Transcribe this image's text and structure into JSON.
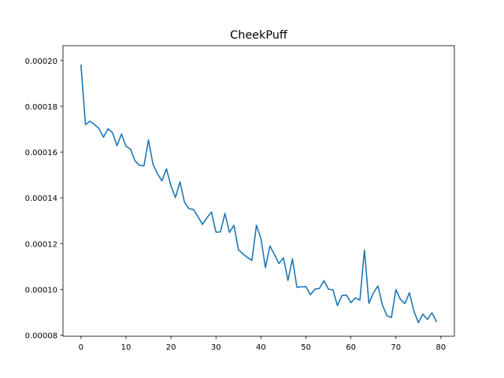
{
  "chart_data": {
    "type": "line",
    "title": "CheekPuff",
    "xlabel": "",
    "ylabel": "",
    "xlim": [
      -4,
      83
    ],
    "ylim": [
      7.95e-05,
      0.0002065
    ],
    "xticks": [
      0,
      10,
      20,
      30,
      40,
      50,
      60,
      70,
      80
    ],
    "xtick_labels": [
      "0",
      "10",
      "20",
      "30",
      "40",
      "50",
      "60",
      "70",
      "80"
    ],
    "yticks": [
      8e-05,
      0.0001,
      0.00012,
      0.00014,
      0.00016,
      0.00018,
      0.0002
    ],
    "ytick_labels": [
      "0.00008",
      "0.00010",
      "0.00012",
      "0.00014",
      "0.00016",
      "0.00018",
      "0.00020"
    ],
    "grid": false,
    "legend": "none",
    "line_color": "#1f77b4",
    "series": [
      {
        "x": [
          0,
          1,
          2,
          3,
          4,
          5,
          6,
          7,
          8,
          9,
          10,
          11,
          12,
          13,
          14,
          15,
          16,
          17,
          18,
          19,
          20,
          21,
          22,
          23,
          24,
          25,
          26,
          27,
          28,
          29,
          30,
          31,
          32,
          33,
          34,
          35,
          36,
          37,
          38,
          39,
          40,
          41,
          42,
          43,
          44,
          45,
          46,
          47,
          48,
          49,
          50,
          51,
          52,
          53,
          54,
          55,
          56,
          57,
          58,
          59,
          60,
          61,
          62,
          63,
          64,
          65,
          66,
          67,
          68,
          69,
          70,
          71,
          72,
          73,
          74,
          75,
          76,
          77,
          78,
          79
        ],
        "values": [
          0.000198,
          0.000172,
          0.0001735,
          0.000172,
          0.0001703,
          0.0001665,
          0.0001702,
          0.0001685,
          0.0001628,
          0.0001679,
          0.0001625,
          0.0001613,
          0.0001562,
          0.0001542,
          0.000154,
          0.0001653,
          0.0001547,
          0.0001505,
          0.0001474,
          0.0001527,
          0.0001452,
          0.0001401,
          0.000147,
          0.0001381,
          0.0001353,
          0.0001349,
          0.0001318,
          0.0001284,
          0.0001313,
          0.0001338,
          0.000125,
          0.0001251,
          0.0001332,
          0.0001249,
          0.000128,
          0.0001173,
          0.0001155,
          0.0001139,
          0.0001127,
          0.000128,
          0.0001222,
          0.0001095,
          0.000119,
          0.0001152,
          0.0001113,
          0.0001138,
          0.0001039,
          0.0001133,
          0.0001009,
          0.0001011,
          0.0001012,
          9.76e-05,
          0.0001001,
          0.0001004,
          0.0001038,
          0.0001001,
          9.98e-05,
          9.29e-05,
          9.73e-05,
          9.75e-05,
          9.42e-05,
          9.63e-05,
          9.53e-05,
          0.0001172,
          9.39e-05,
          9.85e-05,
          0.0001015,
          9.32e-05,
          8.85e-05,
          8.77e-05,
          9.99e-05,
          9.56e-05,
          9.38e-05,
          9.85e-05,
          9.05e-05,
          8.55e-05,
          8.92e-05,
          8.68e-05,
          8.98e-05,
          8.6e-05
        ]
      }
    ]
  }
}
